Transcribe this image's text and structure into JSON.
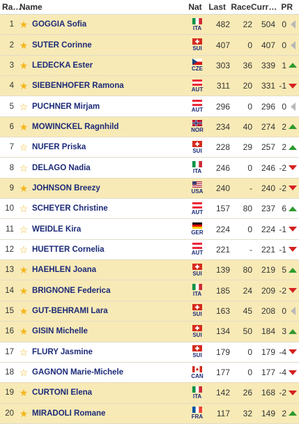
{
  "header": {
    "rank": "Ra…",
    "name": "Name",
    "nat": "Nat",
    "last": "Last",
    "race": "Race",
    "curr": "Curr…",
    "pr": "PR"
  },
  "colors": {
    "favorite_row": "#f8eab6",
    "plain_row": "#ffffff",
    "name_text": "#1c2a78",
    "star": "#f3b51b",
    "arrow_up": "#2e9a2e",
    "arrow_down": "#d42020",
    "arrow_flat": "#b8b8b8"
  },
  "rows": [
    {
      "rank": "1",
      "fav": true,
      "name": "GOGGIA Sofia",
      "nat": "ITA",
      "flag": "ita",
      "last": "482",
      "race": "22",
      "curr": "504",
      "pr": "0",
      "trend": "flat"
    },
    {
      "rank": "2",
      "fav": true,
      "name": "SUTER Corinne",
      "nat": "SUI",
      "flag": "sui",
      "last": "407",
      "race": "0",
      "curr": "407",
      "pr": "0",
      "trend": "flat"
    },
    {
      "rank": "3",
      "fav": true,
      "name": "LEDECKA Ester",
      "nat": "CZE",
      "flag": "cze",
      "last": "303",
      "race": "36",
      "curr": "339",
      "pr": "1",
      "trend": "up"
    },
    {
      "rank": "4",
      "fav": true,
      "name": "SIEBENHOFER Ramona",
      "nat": "AUT",
      "flag": "aut",
      "last": "311",
      "race": "20",
      "curr": "331",
      "pr": "-1",
      "trend": "down"
    },
    {
      "rank": "5",
      "fav": false,
      "name": "PUCHNER Mirjam",
      "nat": "AUT",
      "flag": "aut",
      "last": "296",
      "race": "0",
      "curr": "296",
      "pr": "0",
      "trend": "flat"
    },
    {
      "rank": "6",
      "fav": true,
      "name": "MOWINCKEL Ragnhild",
      "nat": "NOR",
      "flag": "nor",
      "last": "234",
      "race": "40",
      "curr": "274",
      "pr": "2",
      "trend": "up"
    },
    {
      "rank": "7",
      "fav": false,
      "name": "NUFER Priska",
      "nat": "SUI",
      "flag": "sui",
      "last": "228",
      "race": "29",
      "curr": "257",
      "pr": "2",
      "trend": "up"
    },
    {
      "rank": "8",
      "fav": false,
      "name": "DELAGO Nadia",
      "nat": "ITA",
      "flag": "ita",
      "last": "246",
      "race": "0",
      "curr": "246",
      "pr": "-2",
      "trend": "down"
    },
    {
      "rank": "9",
      "fav": true,
      "name": "JOHNSON Breezy",
      "nat": "USA",
      "flag": "usa",
      "last": "240",
      "race": "-",
      "curr": "240",
      "pr": "-2",
      "trend": "down"
    },
    {
      "rank": "10",
      "fav": false,
      "name": "SCHEYER Christine",
      "nat": "AUT",
      "flag": "aut",
      "last": "157",
      "race": "80",
      "curr": "237",
      "pr": "6",
      "trend": "up"
    },
    {
      "rank": "11",
      "fav": false,
      "name": "WEIDLE Kira",
      "nat": "GER",
      "flag": "ger",
      "last": "224",
      "race": "0",
      "curr": "224",
      "pr": "-1",
      "trend": "down"
    },
    {
      "rank": "12",
      "fav": false,
      "name": "HUETTER Cornelia",
      "nat": "AUT",
      "flag": "aut",
      "last": "221",
      "race": "-",
      "curr": "221",
      "pr": "-1",
      "trend": "down"
    },
    {
      "rank": "13",
      "fav": true,
      "name": "HAEHLEN Joana",
      "nat": "SUI",
      "flag": "sui",
      "last": "139",
      "race": "80",
      "curr": "219",
      "pr": "5",
      "trend": "up"
    },
    {
      "rank": "14",
      "fav": true,
      "name": "BRIGNONE Federica",
      "nat": "ITA",
      "flag": "ita",
      "last": "185",
      "race": "24",
      "curr": "209",
      "pr": "-2",
      "trend": "down"
    },
    {
      "rank": "15",
      "fav": true,
      "name": "GUT-BEHRAMI Lara",
      "nat": "SUI",
      "flag": "sui",
      "last": "163",
      "race": "45",
      "curr": "208",
      "pr": "0",
      "trend": "flat"
    },
    {
      "rank": "16",
      "fav": true,
      "name": "GISIN Michelle",
      "nat": "SUI",
      "flag": "sui",
      "last": "134",
      "race": "50",
      "curr": "184",
      "pr": "3",
      "trend": "up"
    },
    {
      "rank": "17",
      "fav": false,
      "name": "FLURY Jasmine",
      "nat": "SUI",
      "flag": "sui",
      "last": "179",
      "race": "0",
      "curr": "179",
      "pr": "-4",
      "trend": "down"
    },
    {
      "rank": "18",
      "fav": false,
      "name": "GAGNON Marie-Michele",
      "nat": "CAN",
      "flag": "can",
      "last": "177",
      "race": "0",
      "curr": "177",
      "pr": "-4",
      "trend": "down"
    },
    {
      "rank": "19",
      "fav": true,
      "name": "CURTONI Elena",
      "nat": "ITA",
      "flag": "ita",
      "last": "142",
      "race": "26",
      "curr": "168",
      "pr": "-2",
      "trend": "down"
    },
    {
      "rank": "20",
      "fav": true,
      "name": "MIRADOLI Romane",
      "nat": "FRA",
      "flag": "fra",
      "last": "117",
      "race": "32",
      "curr": "149",
      "pr": "2",
      "trend": "up"
    }
  ]
}
